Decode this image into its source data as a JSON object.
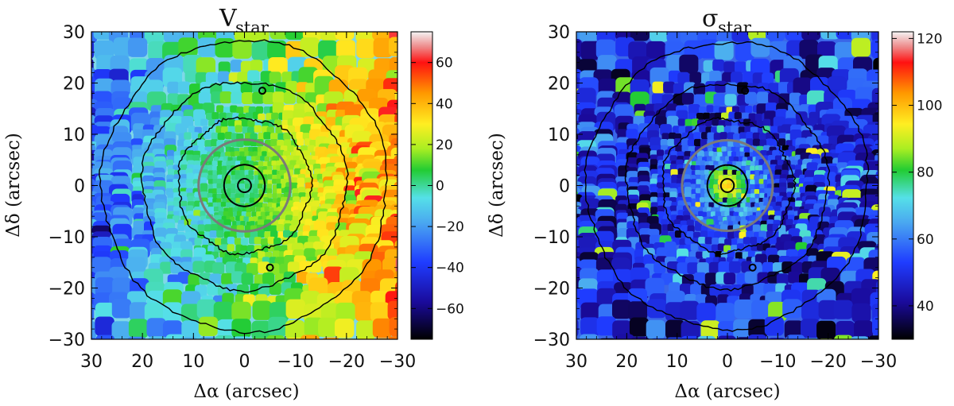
{
  "chart_data": [
    {
      "type": "heatmap",
      "title_symbol": "V",
      "title_subscript": "star",
      "xlabel": "Δα (arcsec)",
      "ylabel": "Δδ (arcsec)",
      "xlim": [
        30,
        -30
      ],
      "ylim": [
        -30,
        30
      ],
      "x_ticks": [
        30,
        20,
        10,
        0,
        -10,
        -20,
        -30
      ],
      "y_ticks": [
        30,
        20,
        10,
        0,
        -10,
        -20,
        -30
      ],
      "x_tick_labels": [
        "30",
        "20",
        "10",
        "0",
        "−10",
        "−20",
        "−30"
      ],
      "y_tick_labels": [
        "30",
        "20",
        "10",
        "0",
        "−10",
        "−20",
        "−30"
      ],
      "colorbar": {
        "range": [
          -75,
          75
        ],
        "ticks": [
          60,
          40,
          20,
          0,
          -20,
          -40,
          -60
        ],
        "tick_labels": [
          "60",
          "40",
          "20",
          "0",
          "−20",
          "−40",
          "−60"
        ]
      },
      "field_description": "velocity gradient from approx -30 (east, left) to +40 (west, right)",
      "gradient_min": -30,
      "gradient_max": 45,
      "isophote_radii_arcsec": [
        1.3,
        4,
        13,
        20,
        28
      ],
      "reference_circle_radius_arcsec": 9
    },
    {
      "type": "heatmap",
      "title_symbol": "σ",
      "title_subscript": "star",
      "xlabel": "Δα (arcsec)",
      "ylabel": "Δδ (arcsec)",
      "xlim": [
        30,
        -30
      ],
      "ylim": [
        -30,
        30
      ],
      "x_ticks": [
        30,
        20,
        10,
        0,
        -10,
        -20,
        -30
      ],
      "y_ticks": [
        30,
        20,
        10,
        0,
        -10,
        -20,
        -30
      ],
      "x_tick_labels": [
        "30",
        "20",
        "10",
        "0",
        "−10",
        "−20",
        "−30"
      ],
      "y_tick_labels": [
        "30",
        "20",
        "10",
        "0",
        "−10",
        "−20",
        "−30"
      ],
      "colorbar": {
        "range": [
          30,
          122
        ],
        "ticks": [
          120,
          100,
          80,
          60,
          40
        ],
        "tick_labels": [
          "120",
          "100",
          "80",
          "60",
          "40"
        ]
      },
      "field_description": "dispersion mostly 40-65, peaking near 80-110 at the center",
      "center_value": 100,
      "background_value": 50,
      "isophote_radii_arcsec": [
        1.3,
        4,
        13,
        20,
        28
      ],
      "reference_circle_radius_arcsec": 9
    }
  ]
}
